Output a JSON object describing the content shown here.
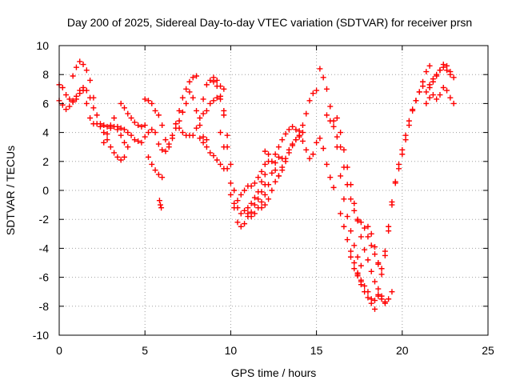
{
  "chart_data": {
    "type": "scatter",
    "title": "Day 200 of 2025, Sidereal Day-to-day VTEC variation (SDTVAR) for receiver prsn",
    "xlabel": "GPS time / hours",
    "ylabel": "SDTVAR / TECUs",
    "xlim": [
      0,
      25
    ],
    "ylim": [
      -10,
      10
    ],
    "xticks": [
      0,
      5,
      10,
      15,
      20,
      25
    ],
    "yticks": [
      -10,
      -8,
      -6,
      -4,
      -2,
      0,
      2,
      4,
      6,
      8,
      10
    ],
    "grid": true,
    "marker": "+",
    "color": "#ff0000",
    "series": [
      {
        "x": [
          0.0,
          0.2,
          0.4,
          0.6,
          0.8,
          1.0,
          1.2,
          1.4,
          1.6,
          1.8,
          2.0,
          2.2,
          2.4,
          2.6,
          2.8,
          3.0,
          3.2,
          3.4,
          3.6,
          3.8,
          4.0,
          4.2,
          4.4,
          4.6,
          4.8,
          5.0,
          5.2,
          5.4,
          5.6,
          5.8,
          6.0
        ],
        "y": [
          7.3,
          7.1,
          6.6,
          6.3,
          6.1,
          6.3,
          6.7,
          6.9,
          6.0,
          5.0,
          4.6,
          4.6,
          4.4,
          4.5,
          4.4,
          4.3,
          4.4,
          4.2,
          4.3,
          4.2,
          4.0,
          3.8,
          3.5,
          3.4,
          3.3,
          3.7,
          4.0,
          4.2,
          4.0,
          3.2,
          2.8
        ]
      },
      {
        "x": [
          0.8,
          1.0,
          1.2,
          1.4,
          1.6,
          1.8,
          2.0,
          2.2,
          2.4,
          2.6,
          2.8,
          3.0,
          3.2,
          3.4,
          3.6,
          3.8,
          4.0
        ],
        "y": [
          7.9,
          8.5,
          8.9,
          8.7,
          8.3,
          7.6,
          6.4,
          5.2,
          4.6,
          4.0,
          3.5,
          3.0,
          2.6,
          2.3,
          2.1,
          2.3,
          3.0
        ]
      },
      {
        "x": [
          0.0,
          0.2,
          0.4,
          0.6,
          0.8,
          1.0,
          1.2,
          1.4,
          1.6,
          1.8,
          2.0
        ],
        "y": [
          6.2,
          5.9,
          5.6,
          5.8,
          6.2,
          6.5,
          6.9,
          7.1,
          6.9,
          6.4,
          5.7
        ]
      },
      {
        "x": [
          2.6,
          2.8,
          3.0,
          3.2,
          3.4,
          3.6,
          3.8
        ],
        "y": [
          3.3,
          3.9,
          4.5,
          5.0,
          4.4,
          3.8,
          3.3
        ]
      },
      {
        "x": [
          3.6,
          3.8,
          4.0,
          4.2,
          4.4,
          4.6,
          4.8,
          5.0
        ],
        "y": [
          6.0,
          5.7,
          5.3,
          5.0,
          4.7,
          4.5,
          4.4,
          4.5
        ]
      },
      {
        "x": [
          5.2,
          5.4,
          5.6,
          5.8,
          6.0
        ],
        "y": [
          2.3,
          1.8,
          1.4,
          1.1,
          0.9
        ]
      },
      {
        "x": [
          5.85,
          5.9,
          5.95
        ],
        "y": [
          -0.7,
          -1.0,
          -1.2
        ]
      },
      {
        "x": [
          5.0,
          5.2,
          5.4,
          5.6,
          5.8,
          6.0,
          6.2,
          6.4,
          6.6,
          6.8,
          7.0,
          7.2,
          7.4,
          7.6,
          7.8,
          8.0
        ],
        "y": [
          6.3,
          6.2,
          6.0,
          5.5,
          5.2,
          4.5,
          3.5,
          3.2,
          3.8,
          4.6,
          5.5,
          6.4,
          7.0,
          7.5,
          7.8,
          7.9
        ]
      },
      {
        "x": [
          6.2,
          6.4,
          6.6,
          6.8,
          7.0,
          7.2,
          7.4,
          7.6,
          7.8,
          8.0,
          8.2,
          8.4,
          8.6
        ],
        "y": [
          2.7,
          3.0,
          3.6,
          4.3,
          4.8,
          5.4,
          6.0,
          6.8,
          6.4,
          5.5,
          4.5,
          3.7,
          3.5
        ]
      },
      {
        "x": [
          7.0,
          7.2,
          7.4,
          7.6,
          7.8,
          8.0,
          8.2,
          8.4,
          8.6,
          8.8,
          9.0,
          9.2,
          9.4,
          9.6
        ],
        "y": [
          4.3,
          4.0,
          3.8,
          3.8,
          3.8,
          4.3,
          5.0,
          6.3,
          7.3,
          7.6,
          7.8,
          7.6,
          7.2,
          7.0
        ]
      },
      {
        "x": [
          8.2,
          8.4,
          8.6,
          8.8,
          9.0,
          9.2,
          9.4,
          9.6
        ],
        "y": [
          3.6,
          3.3,
          3.0,
          2.6,
          2.4,
          2.1,
          1.8,
          1.5
        ]
      },
      {
        "x": [
          8.4,
          8.6,
          8.8,
          9.0,
          9.2,
          9.4,
          9.6,
          9.8,
          10.0,
          10.2,
          10.4,
          10.6,
          10.8,
          11.0,
          11.2,
          11.4,
          11.6,
          11.8,
          12.0
        ],
        "y": [
          5.3,
          5.5,
          6.0,
          6.2,
          6.4,
          6.3,
          5.5,
          3.8,
          1.8,
          0.0,
          -1.2,
          -1.6,
          -1.4,
          -1.2,
          -0.9,
          -0.5,
          -0.1,
          0.6,
          1.1
        ]
      },
      {
        "x": [
          9.0,
          9.2,
          9.4,
          9.6,
          9.8,
          10.0,
          10.2,
          10.4,
          10.6,
          10.8,
          11.0,
          11.2,
          11.4,
          11.6,
          11.8,
          12.0
        ],
        "y": [
          7.5,
          7.2,
          6.5,
          5.2,
          3.0,
          0.5,
          -1.2,
          -2.2,
          -2.5,
          -2.3,
          -1.8,
          -1.5,
          -1.0,
          -0.6,
          -0.1,
          0.4
        ]
      },
      {
        "x": [
          9.4,
          9.6,
          9.8,
          10.0,
          10.2,
          10.4,
          10.6,
          10.8,
          11.0,
          11.2,
          11.4,
          11.6,
          11.8,
          12.0,
          12.2
        ],
        "y": [
          4.0,
          3.0,
          1.5,
          -0.3,
          -0.9,
          -0.7,
          -0.3,
          0.0,
          0.3,
          0.3,
          0.5,
          0.9,
          1.3,
          1.8,
          2.0
        ]
      },
      {
        "x": [
          11.0,
          11.2,
          11.4,
          11.6,
          11.8,
          12.0,
          12.2,
          12.4,
          12.6,
          12.8,
          13.0
        ],
        "y": [
          -1.6,
          -1.8,
          -1.6,
          -1.2,
          -0.8,
          -0.3,
          0.4,
          1.2,
          1.9,
          2.3,
          2.2
        ]
      },
      {
        "x": [
          11.8,
          12.0,
          12.2,
          12.4,
          12.6,
          12.8,
          13.0,
          13.2,
          13.4,
          13.6,
          13.8,
          14.0,
          14.2
        ],
        "y": [
          -1.2,
          -1.0,
          -0.6,
          0.0,
          0.6,
          1.0,
          1.6,
          2.2,
          2.8,
          3.2,
          3.5,
          3.8,
          4.0
        ]
      },
      {
        "x": [
          12.0,
          12.2,
          12.4,
          12.6,
          12.8,
          13.0,
          13.2,
          13.4,
          13.6,
          13.8,
          14.0
        ],
        "y": [
          2.7,
          2.5,
          2.0,
          1.4,
          1.0,
          1.4,
          2.0,
          2.6,
          3.1,
          3.5,
          3.7
        ]
      },
      {
        "x": [
          12.6,
          12.8,
          13.0,
          13.2,
          13.4,
          13.6,
          13.8,
          14.0,
          14.2,
          14.4,
          14.6,
          14.8,
          15.0
        ],
        "y": [
          2.5,
          3.0,
          3.5,
          3.9,
          4.2,
          4.4,
          4.2,
          4.1,
          4.5,
          5.3,
          6.2,
          6.7,
          6.9
        ]
      },
      {
        "x": [
          14.0,
          14.2,
          14.4,
          14.6,
          14.8,
          15.0,
          15.2,
          15.4,
          15.6,
          15.8,
          16.0
        ],
        "y": [
          3.8,
          3.4,
          2.8,
          2.2,
          2.5,
          3.3,
          3.6,
          2.9,
          1.8,
          0.9,
          0.2
        ]
      },
      {
        "x": [
          15.2,
          15.4,
          15.6,
          15.8,
          16.0,
          16.2,
          16.4,
          16.6,
          16.8,
          17.0,
          17.2,
          17.4,
          17.6
        ],
        "y": [
          8.4,
          7.8,
          7.0,
          5.8,
          4.8,
          3.0,
          1.0,
          -0.6,
          -1.8,
          -2.8,
          -3.8,
          -4.6,
          -5.2
        ]
      },
      {
        "x": [
          15.6,
          15.8,
          16.0,
          16.2,
          16.4,
          16.6,
          16.8,
          17.0,
          17.2,
          17.4,
          17.6,
          17.8,
          18.0,
          18.2,
          18.4,
          18.6
        ],
        "y": [
          5.2,
          4.8,
          4.4,
          3.7,
          3.0,
          1.6,
          0.4,
          -0.6,
          -1.4,
          -2.0,
          -2.2,
          -2.6,
          -3.2,
          -3.8,
          -4.4,
          -5.0
        ]
      },
      {
        "x": [
          16.2,
          16.4,
          16.6,
          16.8,
          17.0,
          17.2,
          17.4,
          17.6,
          17.8,
          18.0,
          18.2,
          18.4,
          18.6,
          18.8,
          19.0,
          19.2,
          19.4
        ],
        "y": [
          5.0,
          4.0,
          2.8,
          1.6,
          0.4,
          -0.9,
          -2.1,
          -3.2,
          -4.1,
          -4.8,
          -5.6,
          -6.3,
          -6.8,
          -7.3,
          -7.7,
          -7.5,
          -7.0
        ]
      },
      {
        "x": [
          16.4,
          16.6,
          16.8,
          17.0,
          17.2,
          17.4,
          17.6
        ],
        "y": [
          -1.6,
          -2.5,
          -3.4,
          -4.2,
          -5.0,
          -5.7,
          -6.3
        ]
      },
      {
        "x": [
          17.0,
          17.2,
          17.4,
          17.6,
          17.8,
          18.0,
          18.2,
          18.4,
          18.6,
          18.8,
          19.0
        ],
        "y": [
          -4.6,
          -5.4,
          -5.9,
          -6.2,
          -6.6,
          -7.0,
          -7.5,
          -7.6,
          -7.3,
          -7.5,
          -7.8
        ]
      },
      {
        "x": [
          17.4,
          17.6,
          17.8,
          18.0,
          18.2,
          18.4,
          18.6,
          18.8,
          19.0,
          19.2,
          19.4,
          19.6,
          19.8,
          20.0,
          20.2,
          20.4,
          20.6,
          20.8,
          21.0,
          21.2,
          21.4,
          21.6
        ],
        "y": [
          -5.8,
          -6.5,
          -7.0,
          -7.4,
          -7.8,
          -8.2,
          -7.2,
          -5.8,
          -4.2,
          -2.5,
          -0.8,
          0.5,
          1.5,
          2.5,
          3.5,
          4.5,
          5.5,
          6.2,
          6.8,
          7.5,
          8.2,
          8.6
        ]
      },
      {
        "x": [
          18.0,
          18.2,
          18.4,
          18.6,
          18.8,
          19.0,
          19.2,
          19.4,
          19.6,
          19.8,
          20.0,
          20.2,
          20.4,
          20.6,
          20.8,
          21.0,
          21.2,
          21.4,
          21.6,
          21.8,
          22.0,
          22.2,
          22.4,
          22.6,
          22.8,
          23.0
        ],
        "y": [
          -2.5,
          -3.0,
          -3.9,
          -5.1,
          -5.4,
          -4.5,
          -2.8,
          -1.0,
          0.6,
          1.8,
          2.8,
          3.8,
          4.8,
          5.6,
          6.2,
          6.8,
          7.2,
          6.8,
          7.1,
          7.5,
          7.9,
          8.3,
          8.5,
          8.3,
          8.0,
          7.8
        ]
      },
      {
        "x": [
          21.4,
          21.6,
          21.8,
          22.0,
          22.2,
          22.4,
          22.6,
          22.8,
          23.0
        ],
        "y": [
          6.0,
          6.4,
          6.6,
          6.3,
          6.6,
          7.1,
          6.9,
          6.4,
          6.0
        ]
      },
      {
        "x": [
          21.6,
          21.8,
          22.0,
          22.2,
          22.4,
          22.6,
          22.8
        ],
        "y": [
          7.3,
          7.7,
          8.0,
          8.3,
          8.7,
          8.6,
          8.2
        ]
      }
    ]
  }
}
